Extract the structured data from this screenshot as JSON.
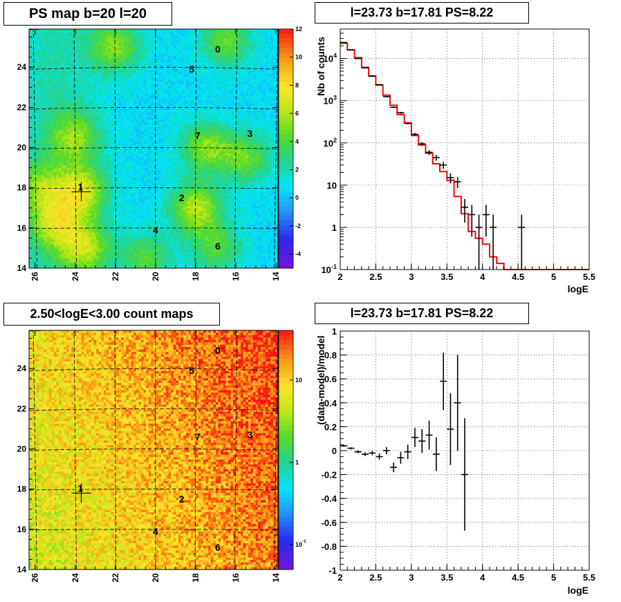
{
  "colors": {
    "data_marker": "#000000",
    "model_line": "#ff0000",
    "grid": "#000000"
  },
  "panels": {
    "top_left": {
      "title": "PS map b=20 l=20"
    },
    "bottom_left": {
      "title": "2.50<logE<3.00 count maps"
    },
    "top_right": {
      "title": "l=23.73 b=17.81 PS=8.22"
    },
    "bottom_right": {
      "title": "l=23.73 b=17.81 PS=8.22"
    }
  },
  "chart_data": [
    {
      "type": "heatmap",
      "title": "PS map b=20 l=20",
      "x_ticks": [
        "26",
        "24",
        "22",
        "20",
        "18",
        "16",
        "14"
      ],
      "y_ticks": [
        "14",
        "16",
        "18",
        "20",
        "22",
        "24"
      ],
      "xlim": [
        26.3,
        13.9
      ],
      "ylim": [
        14,
        25.9
      ],
      "colorbar": {
        "ticks": [
          "12",
          "10",
          "8",
          "6",
          "4",
          "2",
          "0",
          "-2",
          "-4"
        ],
        "range": [
          -5,
          12
        ]
      },
      "sources": [
        {
          "label": "0",
          "l": 16.9,
          "b": 24.9
        },
        {
          "label": "5",
          "l": 18.2,
          "b": 23.9
        },
        {
          "label": "7",
          "l": 17.9,
          "b": 20.6
        },
        {
          "label": "3",
          "l": 15.3,
          "b": 20.7
        },
        {
          "label": "1",
          "l": 23.7,
          "b": 17.8,
          "cross": true
        },
        {
          "label": "2",
          "l": 18.7,
          "b": 17.5
        },
        {
          "label": "4",
          "l": 20.0,
          "b": 15.9
        },
        {
          "label": "6",
          "l": 16.9,
          "b": 15.1
        }
      ],
      "hotspots": [
        {
          "l": 22.0,
          "b": 25.0,
          "strength": 4.5
        },
        {
          "l": 24.0,
          "b": 20.5,
          "strength": 4.0
        },
        {
          "l": 23.7,
          "b": 17.8,
          "strength": 5.5
        },
        {
          "l": 25.0,
          "b": 16.2,
          "strength": 4.5
        },
        {
          "l": 23.5,
          "b": 15.0,
          "strength": 5.0
        },
        {
          "l": 18.0,
          "b": 17.0,
          "strength": 5.5
        },
        {
          "l": 17.5,
          "b": 20.0,
          "strength": 4.5
        },
        {
          "l": 15.5,
          "b": 19.5,
          "strength": 4.0
        },
        {
          "l": 16.5,
          "b": 25.3,
          "strength": 4.0
        },
        {
          "l": 20.5,
          "b": 14.5,
          "strength": 3.5
        },
        {
          "l": 17.0,
          "b": 15.0,
          "strength": 3.5
        },
        {
          "l": 25.8,
          "b": 18.0,
          "strength": 3.5
        }
      ]
    },
    {
      "type": "scatter",
      "title": "l=23.73 b=17.81 PS=8.22",
      "xlabel": "logE",
      "ylabel": "Nb of counts",
      "xlim": [
        2,
        5.5
      ],
      "ylim": [
        0.1,
        50000
      ],
      "log_y": true,
      "x_ticks": [
        "2",
        "2.5",
        "3",
        "3.5",
        "4",
        "4.5",
        "5",
        "5.5"
      ],
      "y_ticks": [
        "10^-1",
        "1",
        "10",
        "10^2",
        "10^3",
        "10^4"
      ],
      "grid": true,
      "data": [
        {
          "x": 2.05,
          "y": 24000,
          "ylo": 23800,
          "yhi": 24200
        },
        {
          "x": 2.15,
          "y": 16000,
          "ylo": 15800,
          "yhi": 16200
        },
        {
          "x": 2.25,
          "y": 10000,
          "ylo": 9850,
          "yhi": 10150
        },
        {
          "x": 2.35,
          "y": 6000,
          "ylo": 5900,
          "yhi": 6100
        },
        {
          "x": 2.45,
          "y": 3800,
          "ylo": 3740,
          "yhi": 3860
        },
        {
          "x": 2.55,
          "y": 2400,
          "ylo": 2350,
          "yhi": 2450
        },
        {
          "x": 2.65,
          "y": 1250,
          "ylo": 1220,
          "yhi": 1280
        },
        {
          "x": 2.75,
          "y": 700,
          "ylo": 670,
          "yhi": 730
        },
        {
          "x": 2.85,
          "y": 520,
          "ylo": 495,
          "yhi": 545
        },
        {
          "x": 2.95,
          "y": 290,
          "ylo": 273,
          "yhi": 307
        },
        {
          "x": 3.05,
          "y": 160,
          "ylo": 147,
          "yhi": 173
        },
        {
          "x": 3.15,
          "y": 95,
          "ylo": 85,
          "yhi": 105
        },
        {
          "x": 3.25,
          "y": 60,
          "ylo": 52,
          "yhi": 68
        },
        {
          "x": 3.35,
          "y": 45,
          "ylo": 38,
          "yhi": 52
        },
        {
          "x": 3.45,
          "y": 30,
          "ylo": 24.5,
          "yhi": 35.5
        },
        {
          "x": 3.55,
          "y": 15,
          "ylo": 11,
          "yhi": 19
        },
        {
          "x": 3.65,
          "y": 12,
          "ylo": 8.5,
          "yhi": 15.5
        },
        {
          "x": 3.75,
          "y": 3,
          "ylo": 1.3,
          "yhi": 4.7
        },
        {
          "x": 3.85,
          "y": 2,
          "ylo": 0.6,
          "yhi": 3.4
        },
        {
          "x": 3.95,
          "y": 1,
          "ylo": 0.1,
          "yhi": 2
        },
        {
          "x": 4.05,
          "y": 2,
          "ylo": 0.6,
          "yhi": 3.4
        },
        {
          "x": 4.15,
          "y": 1,
          "ylo": 0.1,
          "yhi": 2
        },
        {
          "x": 4.55,
          "y": 1,
          "ylo": 0.1,
          "yhi": 2
        }
      ],
      "model": {
        "bin_edges": [
          2.0,
          2.1,
          2.2,
          2.3,
          2.4,
          2.5,
          2.6,
          2.7,
          2.8,
          2.9,
          3.0,
          3.1,
          3.2,
          3.3,
          3.4,
          3.5,
          3.6,
          3.7,
          3.8,
          3.9,
          4.0,
          4.1,
          4.2,
          4.3,
          4.4,
          4.5,
          5.5
        ],
        "values": [
          23000,
          16000,
          10500,
          6200,
          3900,
          2350,
          1350,
          780,
          470,
          300,
          150,
          90,
          57,
          32,
          21,
          13,
          5.4,
          2.1,
          0.8,
          0.55,
          0.4,
          0.2,
          0.14,
          0.1,
          0.1,
          0.1
        ]
      }
    },
    {
      "type": "heatmap",
      "title": "2.50<logE<3.00 count maps",
      "x_ticks": [
        "26",
        "24",
        "22",
        "20",
        "18",
        "16",
        "14"
      ],
      "y_ticks": [
        "14",
        "16",
        "18",
        "20",
        "22",
        "24"
      ],
      "xlim": [
        26.3,
        13.9
      ],
      "ylim": [
        14,
        25.9
      ],
      "log_z": true,
      "colorbar": {
        "ticks": [
          "10",
          "1",
          "10^-1"
        ],
        "range": [
          0.05,
          40
        ]
      },
      "sources": [
        {
          "label": "0",
          "l": 16.9,
          "b": 24.9
        },
        {
          "label": "5",
          "l": 18.2,
          "b": 23.9
        },
        {
          "label": "7",
          "l": 17.9,
          "b": 20.6
        },
        {
          "label": "3",
          "l": 15.3,
          "b": 20.7
        },
        {
          "label": "1",
          "l": 23.7,
          "b": 17.8,
          "cross": true
        },
        {
          "label": "2",
          "l": 18.7,
          "b": 17.5
        },
        {
          "label": "4",
          "l": 20.0,
          "b": 15.9
        },
        {
          "label": "6",
          "l": 16.9,
          "b": 15.1
        }
      ]
    },
    {
      "type": "scatter",
      "title": "l=23.73 b=17.81 PS=8.22",
      "xlabel": "logE",
      "ylabel": "(data-model)/model",
      "xlim": [
        2,
        5.5
      ],
      "ylim": [
        -1,
        1
      ],
      "x_ticks": [
        "2",
        "2.5",
        "3",
        "3.5",
        "4",
        "4.5",
        "5",
        "5.5"
      ],
      "y_ticks": [
        "-1",
        "-0.8",
        "-0.6",
        "-0.4",
        "-0.2",
        "0",
        "0.2",
        "0.4",
        "0.6",
        "0.8",
        "1"
      ],
      "grid": true,
      "data": [
        {
          "x": 2.05,
          "y": 0.04,
          "err": 0.008
        },
        {
          "x": 2.15,
          "y": 0.02,
          "err": 0.01
        },
        {
          "x": 2.25,
          "y": -0.01,
          "err": 0.012
        },
        {
          "x": 2.35,
          "y": -0.03,
          "err": 0.015
        },
        {
          "x": 2.45,
          "y": -0.02,
          "err": 0.018
        },
        {
          "x": 2.55,
          "y": -0.05,
          "err": 0.025
        },
        {
          "x": 2.65,
          "y": 0.0,
          "err": 0.03
        },
        {
          "x": 2.75,
          "y": -0.14,
          "err": 0.04
        },
        {
          "x": 2.85,
          "y": -0.06,
          "err": 0.05
        },
        {
          "x": 2.95,
          "y": -0.01,
          "err": 0.06
        },
        {
          "x": 3.05,
          "y": 0.11,
          "err": 0.08
        },
        {
          "x": 3.15,
          "y": 0.08,
          "err": 0.1
        },
        {
          "x": 3.25,
          "y": 0.13,
          "err": 0.12
        },
        {
          "x": 3.35,
          "y": -0.03,
          "err": 0.14
        },
        {
          "x": 3.45,
          "y": 0.58,
          "err": 0.24
        },
        {
          "x": 3.55,
          "y": 0.18,
          "err": 0.3
        },
        {
          "x": 3.65,
          "y": 0.4,
          "err": 0.4
        },
        {
          "x": 3.75,
          "y": -0.2,
          "err": 0.47
        }
      ]
    }
  ]
}
